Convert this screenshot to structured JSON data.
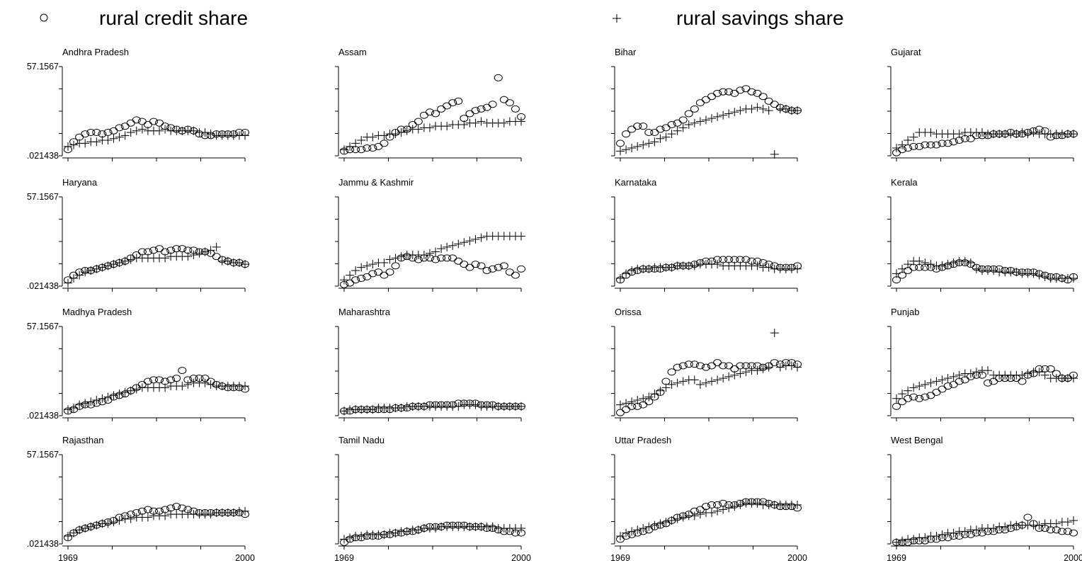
{
  "legend": {
    "credit_label": "rural credit share",
    "savings_label": "rural savings share"
  },
  "chart_data": {
    "type": "scatter",
    "layout": "small-multiples",
    "grid": false,
    "legend_position": "top",
    "x_ticks": [
      1969,
      2000
    ],
    "y_ticks": [
      ".021438",
      "57.1567"
    ],
    "xlim": [
      1969,
      2000
    ],
    "ylim": [
      0.021438,
      57.1567
    ],
    "series": [
      {
        "name": "rural credit share",
        "marker": "circle"
      },
      {
        "name": "rural savings share",
        "marker": "plus"
      }
    ],
    "panels": [
      {
        "state": "Andhra Pradesh",
        "credit": [
          4,
          9,
          12,
          14,
          15,
          15,
          14,
          15,
          16,
          18,
          19,
          21,
          23,
          22,
          20,
          22,
          21,
          19,
          18,
          17,
          16,
          17,
          16,
          14,
          13,
          13,
          14,
          14,
          14,
          14,
          15,
          15
        ],
        "savings": [
          6,
          7,
          8,
          8,
          9,
          9,
          10,
          10,
          11,
          12,
          13,
          15,
          16,
          17,
          16,
          16,
          16,
          17,
          16,
          16,
          16,
          16,
          16,
          15,
          15,
          14,
          13,
          13,
          13,
          13,
          13,
          13
        ]
      },
      {
        "state": "Assam",
        "credit": [
          3,
          4,
          4,
          4,
          5,
          5,
          6,
          8,
          12,
          15,
          17,
          17,
          20,
          22,
          26,
          28,
          27,
          30,
          32,
          34,
          35,
          24,
          27,
          29,
          30,
          31,
          33,
          50,
          36,
          34,
          30,
          25
        ],
        "savings": [
          4,
          6,
          8,
          10,
          12,
          12,
          13,
          13,
          14,
          14,
          15,
          16,
          17,
          17,
          18,
          18,
          19,
          19,
          19,
          20,
          20,
          20,
          21,
          21,
          22,
          21,
          21,
          21,
          21,
          22,
          22,
          22
        ]
      },
      {
        "state": "Bihar",
        "credit": [
          8,
          14,
          17,
          19,
          19,
          15,
          15,
          17,
          18,
          20,
          21,
          23,
          27,
          30,
          34,
          36,
          38,
          40,
          41,
          41,
          40,
          42,
          43,
          41,
          40,
          38,
          35,
          33,
          31,
          30,
          29,
          29
        ],
        "savings": [
          3,
          4,
          5,
          6,
          7,
          8,
          9,
          11,
          12,
          14,
          16,
          18,
          20,
          21,
          22,
          23,
          24,
          25,
          26,
          27,
          28,
          29,
          30,
          30,
          31,
          30,
          29,
          1,
          30,
          30,
          29,
          29
        ]
      },
      {
        "state": "Gujarat",
        "credit": [
          2,
          4,
          5,
          6,
          6,
          7,
          7,
          7,
          8,
          8,
          9,
          10,
          11,
          11,
          13,
          13,
          13,
          14,
          14,
          14,
          15,
          14,
          14,
          15,
          16,
          17,
          16,
          12,
          13,
          13,
          14,
          14
        ],
        "savings": [
          5,
          7,
          10,
          12,
          15,
          15,
          15,
          14,
          14,
          14,
          14,
          14,
          15,
          15,
          15,
          15,
          14,
          14,
          14,
          14,
          14,
          14,
          15,
          14,
          15,
          14,
          14,
          14,
          14,
          14,
          14,
          14
        ]
      },
      {
        "state": "Haryana",
        "credit": [
          4,
          7,
          9,
          10,
          10,
          11,
          12,
          13,
          14,
          15,
          16,
          18,
          20,
          22,
          22,
          23,
          24,
          22,
          23,
          24,
          24,
          23,
          23,
          22,
          22,
          21,
          19,
          17,
          16,
          15,
          15,
          14
        ],
        "savings": [
          2,
          5,
          7,
          9,
          10,
          11,
          12,
          13,
          14,
          15,
          16,
          17,
          18,
          18,
          18,
          18,
          18,
          18,
          19,
          19,
          19,
          19,
          20,
          21,
          22,
          23,
          25,
          16,
          16,
          15,
          15,
          14
        ]
      },
      {
        "state": "Jammu & Kashmir",
        "credit": [
          1,
          2,
          4,
          5,
          6,
          8,
          9,
          7,
          9,
          13,
          18,
          19,
          18,
          17,
          18,
          18,
          17,
          18,
          18,
          18,
          16,
          14,
          12,
          14,
          13,
          10,
          11,
          12,
          13,
          9,
          7,
          11
        ],
        "savings": [
          4,
          7,
          10,
          12,
          13,
          14,
          15,
          15,
          17,
          18,
          19,
          20,
          20,
          20,
          20,
          21,
          22,
          24,
          25,
          26,
          27,
          28,
          29,
          30,
          31,
          32,
          32,
          32,
          32,
          32,
          32,
          32
        ]
      },
      {
        "state": "Karnataka",
        "credit": [
          4,
          7,
          9,
          10,
          11,
          11,
          11,
          11,
          12,
          12,
          13,
          13,
          13,
          14,
          15,
          16,
          16,
          17,
          17,
          17,
          17,
          17,
          17,
          16,
          16,
          15,
          14,
          13,
          12,
          12,
          12,
          13
        ],
        "savings": [
          5,
          8,
          10,
          11,
          11,
          11,
          12,
          12,
          12,
          12,
          13,
          13,
          13,
          13,
          14,
          14,
          14,
          14,
          13,
          13,
          13,
          13,
          13,
          13,
          13,
          12,
          12,
          11,
          11,
          11,
          11,
          11
        ]
      },
      {
        "state": "Kerala",
        "credit": [
          4,
          7,
          10,
          12,
          12,
          12,
          12,
          11,
          12,
          13,
          14,
          15,
          15,
          14,
          12,
          11,
          11,
          11,
          11,
          10,
          10,
          9,
          9,
          9,
          9,
          8,
          7,
          6,
          6,
          5,
          4,
          6
        ],
        "savings": [
          8,
          11,
          14,
          16,
          16,
          15,
          14,
          13,
          13,
          14,
          15,
          16,
          16,
          15,
          11,
          10,
          10,
          10,
          9,
          9,
          9,
          9,
          8,
          8,
          8,
          7,
          6,
          5,
          5,
          5,
          5,
          5
        ]
      },
      {
        "state": "Madhya Pradesh",
        "credit": [
          3,
          4,
          6,
          7,
          7,
          8,
          9,
          10,
          12,
          13,
          14,
          16,
          18,
          20,
          22,
          23,
          23,
          22,
          23,
          24,
          29,
          23,
          24,
          24,
          24,
          22,
          20,
          19,
          18,
          18,
          18,
          17
        ],
        "savings": [
          4,
          5,
          7,
          8,
          9,
          10,
          11,
          12,
          13,
          14,
          15,
          16,
          17,
          18,
          18,
          18,
          18,
          18,
          19,
          19,
          19,
          20,
          21,
          21,
          21,
          20,
          19,
          19,
          19,
          19,
          19,
          19
        ]
      },
      {
        "state": "Maharashtra",
        "credit": [
          3,
          3,
          4,
          4,
          4,
          4,
          4,
          4,
          4,
          5,
          5,
          5,
          6,
          6,
          6,
          7,
          7,
          7,
          7,
          7,
          8,
          8,
          8,
          8,
          7,
          7,
          7,
          6,
          6,
          6,
          6,
          6
        ],
        "savings": [
          3,
          4,
          4,
          4,
          4,
          4,
          5,
          5,
          5,
          5,
          5,
          6,
          6,
          6,
          6,
          6,
          6,
          6,
          6,
          6,
          6,
          7,
          7,
          7,
          6,
          6,
          6,
          6,
          6,
          6,
          6,
          6
        ]
      },
      {
        "state": "Orissa",
        "credit": [
          2,
          4,
          6,
          6,
          7,
          9,
          12,
          15,
          22,
          28,
          31,
          32,
          33,
          33,
          32,
          31,
          32,
          34,
          32,
          32,
          30,
          32,
          32,
          32,
          32,
          31,
          32,
          34,
          33,
          34,
          34,
          33
        ],
        "savings": [
          7,
          8,
          9,
          10,
          11,
          12,
          14,
          16,
          18,
          20,
          21,
          22,
          23,
          23,
          20,
          21,
          22,
          23,
          24,
          25,
          26,
          27,
          28,
          29,
          29,
          30,
          31,
          53,
          31,
          32,
          32,
          31
        ]
      },
      {
        "state": "Punjab",
        "credit": [
          6,
          9,
          11,
          12,
          11,
          12,
          13,
          15,
          17,
          19,
          20,
          22,
          23,
          25,
          26,
          26,
          21,
          22,
          24,
          24,
          24,
          24,
          22,
          26,
          27,
          30,
          30,
          30,
          27,
          24,
          24,
          26
        ],
        "savings": [
          11,
          14,
          16,
          18,
          19,
          20,
          21,
          22,
          23,
          24,
          25,
          26,
          27,
          27,
          28,
          29,
          29,
          26,
          26,
          26,
          26,
          26,
          26,
          27,
          28,
          28,
          26,
          24,
          24,
          24,
          24,
          24
        ]
      },
      {
        "state": "Rajasthan",
        "credit": [
          4,
          7,
          9,
          10,
          11,
          12,
          13,
          14,
          15,
          17,
          18,
          19,
          20,
          21,
          22,
          21,
          21,
          22,
          23,
          24,
          23,
          22,
          21,
          20,
          20,
          20,
          20,
          20,
          20,
          20,
          20,
          19
        ],
        "savings": [
          5,
          7,
          9,
          10,
          11,
          12,
          13,
          13,
          14,
          15,
          16,
          16,
          17,
          17,
          17,
          18,
          18,
          18,
          19,
          19,
          19,
          19,
          19,
          19,
          19,
          19,
          20,
          20,
          20,
          20,
          21,
          21
        ]
      },
      {
        "state": "Tamil Nadu",
        "credit": [
          1,
          3,
          4,
          4,
          5,
          5,
          5,
          6,
          6,
          7,
          7,
          8,
          8,
          9,
          10,
          11,
          11,
          11,
          12,
          12,
          12,
          12,
          11,
          11,
          11,
          10,
          10,
          9,
          8,
          8,
          7,
          7
        ],
        "savings": [
          3,
          4,
          5,
          5,
          6,
          6,
          6,
          6,
          7,
          7,
          8,
          8,
          9,
          9,
          10,
          10,
          10,
          11,
          11,
          11,
          11,
          11,
          11,
          11,
          11,
          11,
          11,
          10,
          10,
          10,
          10,
          10
        ]
      },
      {
        "state": "Uttar Pradesh",
        "credit": [
          3,
          5,
          6,
          7,
          8,
          9,
          11,
          12,
          13,
          15,
          17,
          18,
          19,
          21,
          22,
          24,
          25,
          25,
          26,
          25,
          25,
          26,
          27,
          27,
          27,
          27,
          26,
          25,
          24,
          24,
          24,
          23
        ],
        "savings": [
          5,
          7,
          8,
          9,
          10,
          11,
          12,
          13,
          14,
          15,
          16,
          17,
          18,
          18,
          19,
          20,
          20,
          21,
          22,
          23,
          24,
          25,
          26,
          26,
          26,
          25,
          25,
          25,
          25,
          25,
          25,
          25
        ]
      },
      {
        "state": "West Bengal",
        "credit": [
          1,
          1,
          1,
          2,
          2,
          2,
          3,
          3,
          4,
          4,
          5,
          5,
          6,
          6,
          7,
          7,
          8,
          8,
          9,
          9,
          10,
          11,
          12,
          17,
          13,
          10,
          10,
          9,
          9,
          8,
          8,
          7
        ],
        "savings": [
          1,
          2,
          3,
          3,
          4,
          4,
          5,
          5,
          6,
          7,
          7,
          8,
          8,
          9,
          9,
          10,
          10,
          10,
          11,
          11,
          12,
          12,
          12,
          12,
          12,
          12,
          13,
          13,
          13,
          14,
          14,
          15
        ]
      }
    ]
  }
}
